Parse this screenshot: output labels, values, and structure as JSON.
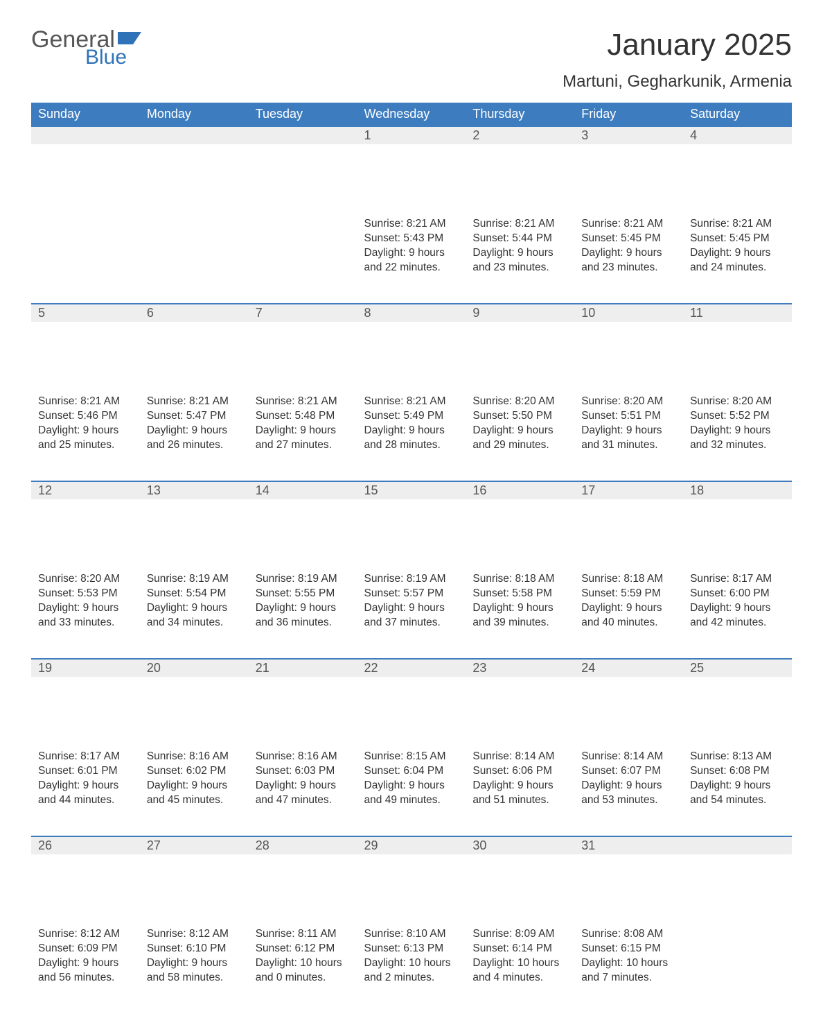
{
  "brand": {
    "part1": "General",
    "part2": "Blue",
    "color_accent": "#2f72b8",
    "color_text": "#555555"
  },
  "title": "January 2025",
  "location": "Martuni, Gegharkunik, Armenia",
  "colors": {
    "header_bg": "#3d7cbf",
    "header_text": "#ffffff",
    "daynum_bg": "#eeeeee",
    "daynum_border": "#3d7cbf",
    "body_text": "#333333"
  },
  "day_headers": [
    "Sunday",
    "Monday",
    "Tuesday",
    "Wednesday",
    "Thursday",
    "Friday",
    "Saturday"
  ],
  "weeks": [
    [
      null,
      null,
      null,
      {
        "n": "1",
        "sunrise": "Sunrise: 8:21 AM",
        "sunset": "Sunset: 5:43 PM",
        "day1": "Daylight: 9 hours",
        "day2": "and 22 minutes."
      },
      {
        "n": "2",
        "sunrise": "Sunrise: 8:21 AM",
        "sunset": "Sunset: 5:44 PM",
        "day1": "Daylight: 9 hours",
        "day2": "and 23 minutes."
      },
      {
        "n": "3",
        "sunrise": "Sunrise: 8:21 AM",
        "sunset": "Sunset: 5:45 PM",
        "day1": "Daylight: 9 hours",
        "day2": "and 23 minutes."
      },
      {
        "n": "4",
        "sunrise": "Sunrise: 8:21 AM",
        "sunset": "Sunset: 5:45 PM",
        "day1": "Daylight: 9 hours",
        "day2": "and 24 minutes."
      }
    ],
    [
      {
        "n": "5",
        "sunrise": "Sunrise: 8:21 AM",
        "sunset": "Sunset: 5:46 PM",
        "day1": "Daylight: 9 hours",
        "day2": "and 25 minutes."
      },
      {
        "n": "6",
        "sunrise": "Sunrise: 8:21 AM",
        "sunset": "Sunset: 5:47 PM",
        "day1": "Daylight: 9 hours",
        "day2": "and 26 minutes."
      },
      {
        "n": "7",
        "sunrise": "Sunrise: 8:21 AM",
        "sunset": "Sunset: 5:48 PM",
        "day1": "Daylight: 9 hours",
        "day2": "and 27 minutes."
      },
      {
        "n": "8",
        "sunrise": "Sunrise: 8:21 AM",
        "sunset": "Sunset: 5:49 PM",
        "day1": "Daylight: 9 hours",
        "day2": "and 28 minutes."
      },
      {
        "n": "9",
        "sunrise": "Sunrise: 8:20 AM",
        "sunset": "Sunset: 5:50 PM",
        "day1": "Daylight: 9 hours",
        "day2": "and 29 minutes."
      },
      {
        "n": "10",
        "sunrise": "Sunrise: 8:20 AM",
        "sunset": "Sunset: 5:51 PM",
        "day1": "Daylight: 9 hours",
        "day2": "and 31 minutes."
      },
      {
        "n": "11",
        "sunrise": "Sunrise: 8:20 AM",
        "sunset": "Sunset: 5:52 PM",
        "day1": "Daylight: 9 hours",
        "day2": "and 32 minutes."
      }
    ],
    [
      {
        "n": "12",
        "sunrise": "Sunrise: 8:20 AM",
        "sunset": "Sunset: 5:53 PM",
        "day1": "Daylight: 9 hours",
        "day2": "and 33 minutes."
      },
      {
        "n": "13",
        "sunrise": "Sunrise: 8:19 AM",
        "sunset": "Sunset: 5:54 PM",
        "day1": "Daylight: 9 hours",
        "day2": "and 34 minutes."
      },
      {
        "n": "14",
        "sunrise": "Sunrise: 8:19 AM",
        "sunset": "Sunset: 5:55 PM",
        "day1": "Daylight: 9 hours",
        "day2": "and 36 minutes."
      },
      {
        "n": "15",
        "sunrise": "Sunrise: 8:19 AM",
        "sunset": "Sunset: 5:57 PM",
        "day1": "Daylight: 9 hours",
        "day2": "and 37 minutes."
      },
      {
        "n": "16",
        "sunrise": "Sunrise: 8:18 AM",
        "sunset": "Sunset: 5:58 PM",
        "day1": "Daylight: 9 hours",
        "day2": "and 39 minutes."
      },
      {
        "n": "17",
        "sunrise": "Sunrise: 8:18 AM",
        "sunset": "Sunset: 5:59 PM",
        "day1": "Daylight: 9 hours",
        "day2": "and 40 minutes."
      },
      {
        "n": "18",
        "sunrise": "Sunrise: 8:17 AM",
        "sunset": "Sunset: 6:00 PM",
        "day1": "Daylight: 9 hours",
        "day2": "and 42 minutes."
      }
    ],
    [
      {
        "n": "19",
        "sunrise": "Sunrise: 8:17 AM",
        "sunset": "Sunset: 6:01 PM",
        "day1": "Daylight: 9 hours",
        "day2": "and 44 minutes."
      },
      {
        "n": "20",
        "sunrise": "Sunrise: 8:16 AM",
        "sunset": "Sunset: 6:02 PM",
        "day1": "Daylight: 9 hours",
        "day2": "and 45 minutes."
      },
      {
        "n": "21",
        "sunrise": "Sunrise: 8:16 AM",
        "sunset": "Sunset: 6:03 PM",
        "day1": "Daylight: 9 hours",
        "day2": "and 47 minutes."
      },
      {
        "n": "22",
        "sunrise": "Sunrise: 8:15 AM",
        "sunset": "Sunset: 6:04 PM",
        "day1": "Daylight: 9 hours",
        "day2": "and 49 minutes."
      },
      {
        "n": "23",
        "sunrise": "Sunrise: 8:14 AM",
        "sunset": "Sunset: 6:06 PM",
        "day1": "Daylight: 9 hours",
        "day2": "and 51 minutes."
      },
      {
        "n": "24",
        "sunrise": "Sunrise: 8:14 AM",
        "sunset": "Sunset: 6:07 PM",
        "day1": "Daylight: 9 hours",
        "day2": "and 53 minutes."
      },
      {
        "n": "25",
        "sunrise": "Sunrise: 8:13 AM",
        "sunset": "Sunset: 6:08 PM",
        "day1": "Daylight: 9 hours",
        "day2": "and 54 minutes."
      }
    ],
    [
      {
        "n": "26",
        "sunrise": "Sunrise: 8:12 AM",
        "sunset": "Sunset: 6:09 PM",
        "day1": "Daylight: 9 hours",
        "day2": "and 56 minutes."
      },
      {
        "n": "27",
        "sunrise": "Sunrise: 8:12 AM",
        "sunset": "Sunset: 6:10 PM",
        "day1": "Daylight: 9 hours",
        "day2": "and 58 minutes."
      },
      {
        "n": "28",
        "sunrise": "Sunrise: 8:11 AM",
        "sunset": "Sunset: 6:12 PM",
        "day1": "Daylight: 10 hours",
        "day2": "and 0 minutes."
      },
      {
        "n": "29",
        "sunrise": "Sunrise: 8:10 AM",
        "sunset": "Sunset: 6:13 PM",
        "day1": "Daylight: 10 hours",
        "day2": "and 2 minutes."
      },
      {
        "n": "30",
        "sunrise": "Sunrise: 8:09 AM",
        "sunset": "Sunset: 6:14 PM",
        "day1": "Daylight: 10 hours",
        "day2": "and 4 minutes."
      },
      {
        "n": "31",
        "sunrise": "Sunrise: 8:08 AM",
        "sunset": "Sunset: 6:15 PM",
        "day1": "Daylight: 10 hours",
        "day2": "and 7 minutes."
      },
      null
    ]
  ]
}
